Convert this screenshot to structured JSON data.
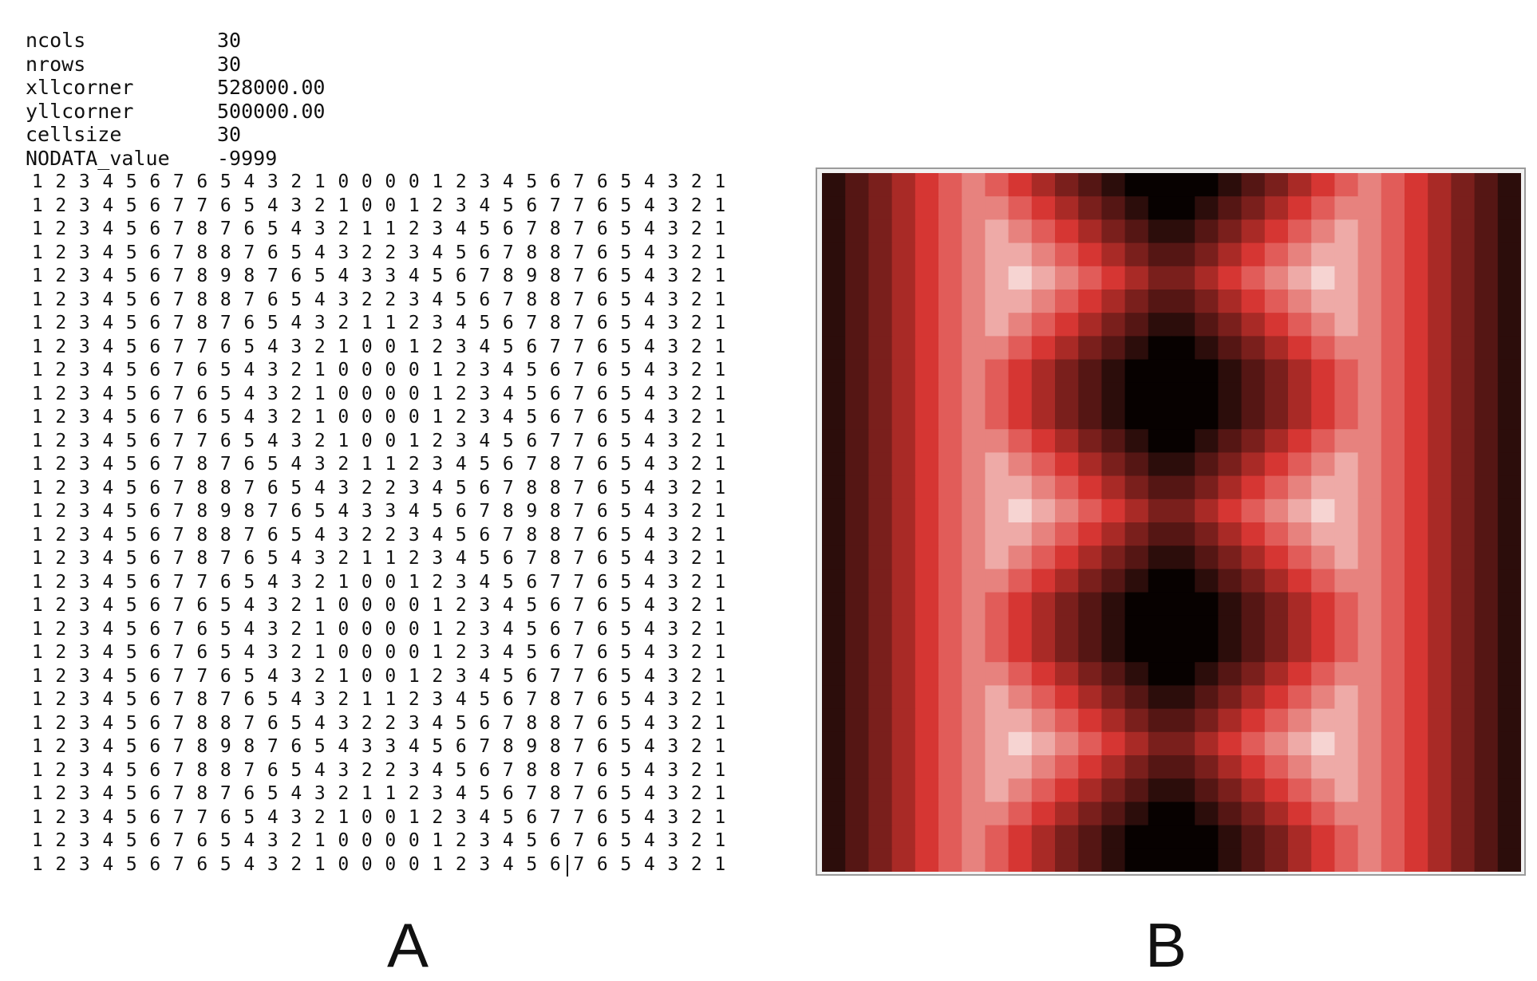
{
  "panels": {
    "a_label": "A",
    "b_label": "B"
  },
  "header": [
    {
      "key": "ncols",
      "value": "30"
    },
    {
      "key": "nrows",
      "value": "30"
    },
    {
      "key": "xllcorner",
      "value": "528000.00"
    },
    {
      "key": "yllcorner",
      "value": "500000.00"
    },
    {
      "key": "cellsize",
      "value": "30"
    },
    {
      "key": "NODATA_value",
      "value": "-9999"
    }
  ],
  "grid_rows": [
    "1 2 3 4 5 6 7 6 5 4 3 2 1 0 0 0 0 1 2 3 4 5 6 7 6 5 4 3 2 1",
    "1 2 3 4 5 6 7 7 6 5 4 3 2 1 0 0 1 2 3 4 5 6 7 7 6 5 4 3 2 1",
    "1 2 3 4 5 6 7 8 7 6 5 4 3 2 1 1 2 3 4 5 6 7 8 7 6 5 4 3 2 1",
    "1 2 3 4 5 6 7 8 8 7 6 5 4 3 2 2 3 4 5 6 7 8 8 7 6 5 4 3 2 1",
    "1 2 3 4 5 6 7 8 9 8 7 6 5 4 3 3 4 5 6 7 8 9 8 7 6 5 4 3 2 1",
    "1 2 3 4 5 6 7 8 8 7 6 5 4 3 2 2 3 4 5 6 7 8 8 7 6 5 4 3 2 1",
    "1 2 3 4 5 6 7 8 7 6 5 4 3 2 1 1 2 3 4 5 6 7 8 7 6 5 4 3 2 1",
    "1 2 3 4 5 6 7 7 6 5 4 3 2 1 0 0 1 2 3 4 5 6 7 7 6 5 4 3 2 1",
    "1 2 3 4 5 6 7 6 5 4 3 2 1 0 0 0 0 1 2 3 4 5 6 7 6 5 4 3 2 1",
    "1 2 3 4 5 6 7 6 5 4 3 2 1 0 0 0 0 1 2 3 4 5 6 7 6 5 4 3 2 1",
    "1 2 3 4 5 6 7 6 5 4 3 2 1 0 0 0 0 1 2 3 4 5 6 7 6 5 4 3 2 1",
    "1 2 3 4 5 6 7 7 6 5 4 3 2 1 0 0 1 2 3 4 5 6 7 7 6 5 4 3 2 1",
    "1 2 3 4 5 6 7 8 7 6 5 4 3 2 1 1 2 3 4 5 6 7 8 7 6 5 4 3 2 1",
    "1 2 3 4 5 6 7 8 8 7 6 5 4 3 2 2 3 4 5 6 7 8 8 7 6 5 4 3 2 1",
    "1 2 3 4 5 6 7 8 9 8 7 6 5 4 3 3 4 5 6 7 8 9 8 7 6 5 4 3 2 1",
    "1 2 3 4 5 6 7 8 8 7 6 5 4 3 2 2 3 4 5 6 7 8 8 7 6 5 4 3 2 1",
    "1 2 3 4 5 6 7 8 7 6 5 4 3 2 1 1 2 3 4 5 6 7 8 7 6 5 4 3 2 1",
    "1 2 3 4 5 6 7 7 6 5 4 3 2 1 0 0 1 2 3 4 5 6 7 7 6 5 4 3 2 1",
    "1 2 3 4 5 6 7 6 5 4 3 2 1 0 0 0 0 1 2 3 4 5 6 7 6 5 4 3 2 1",
    "1 2 3 4 5 6 7 6 5 4 3 2 1 0 0 0 0 1 2 3 4 5 6 7 6 5 4 3 2 1",
    "1 2 3 4 5 6 7 6 5 4 3 2 1 0 0 0 0 1 2 3 4 5 6 7 6 5 4 3 2 1",
    "1 2 3 4 5 6 7 7 6 5 4 3 2 1 0 0 1 2 3 4 5 6 7 7 6 5 4 3 2 1",
    "1 2 3 4 5 6 7 8 7 6 5 4 3 2 1 1 2 3 4 5 6 7 8 7 6 5 4 3 2 1",
    "1 2 3 4 5 6 7 8 8 7 6 5 4 3 2 2 3 4 5 6 7 8 8 7 6 5 4 3 2 1",
    "1 2 3 4 5 6 7 8 9 8 7 6 5 4 3 3 4 5 6 7 8 9 8 7 6 5 4 3 2 1",
    "1 2 3 4 5 6 7 8 8 7 6 5 4 3 2 2 3 4 5 6 7 8 8 7 6 5 4 3 2 1",
    "1 2 3 4 5 6 7 8 7 6 5 4 3 2 1 1 2 3 4 5 6 7 8 7 6 5 4 3 2 1",
    "1 2 3 4 5 6 7 7 6 5 4 3 2 1 0 0 1 2 3 4 5 6 7 7 6 5 4 3 2 1",
    "1 2 3 4 5 6 7 6 5 4 3 2 1 0 0 0 0 1 2 3 4 5 6 7 6 5 4 3 2 1",
    "1 2 3 4 5 6 7 6 5 4 3 2 1 0 0 0 0 1 2 3 4 5 6 7 6 5 4 3 2 1"
  ],
  "colormap": [
    "#070100",
    "#2c0d0b",
    "#551614",
    "#7a1f1c",
    "#a92a26",
    "#d63633",
    "#e15c59",
    "#e7827e",
    "#eeaaa7",
    "#f6d4d2"
  ],
  "caret": {
    "row": 29,
    "col": 23
  }
}
